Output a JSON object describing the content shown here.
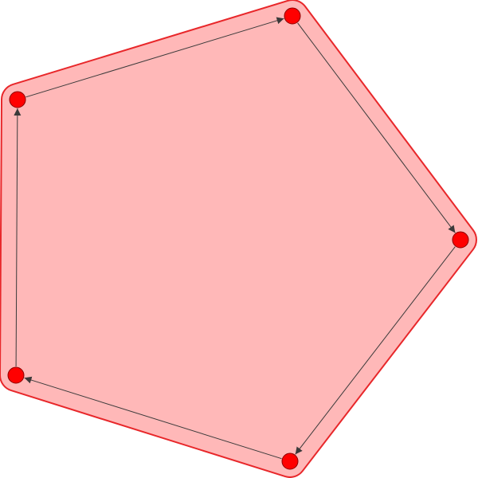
{
  "graph": {
    "node_count": 5,
    "nodes": [
      {
        "id": "n0"
      },
      {
        "id": "n1"
      },
      {
        "id": "n2"
      },
      {
        "id": "n3"
      },
      {
        "id": "n4"
      }
    ],
    "edges": [
      {
        "from": "n0",
        "to": "n1"
      },
      {
        "from": "n1",
        "to": "n2"
      },
      {
        "from": "n2",
        "to": "n3"
      },
      {
        "from": "n3",
        "to": "n4"
      },
      {
        "from": "n4",
        "to": "n0"
      }
    ],
    "directed": true,
    "colors": {
      "hull_fill": "#ffb8b8",
      "hull_stroke": "#e8272a",
      "node_fill": "#ff0000",
      "node_stroke": "#8b0000",
      "edge": "#3a3a3a"
    }
  }
}
